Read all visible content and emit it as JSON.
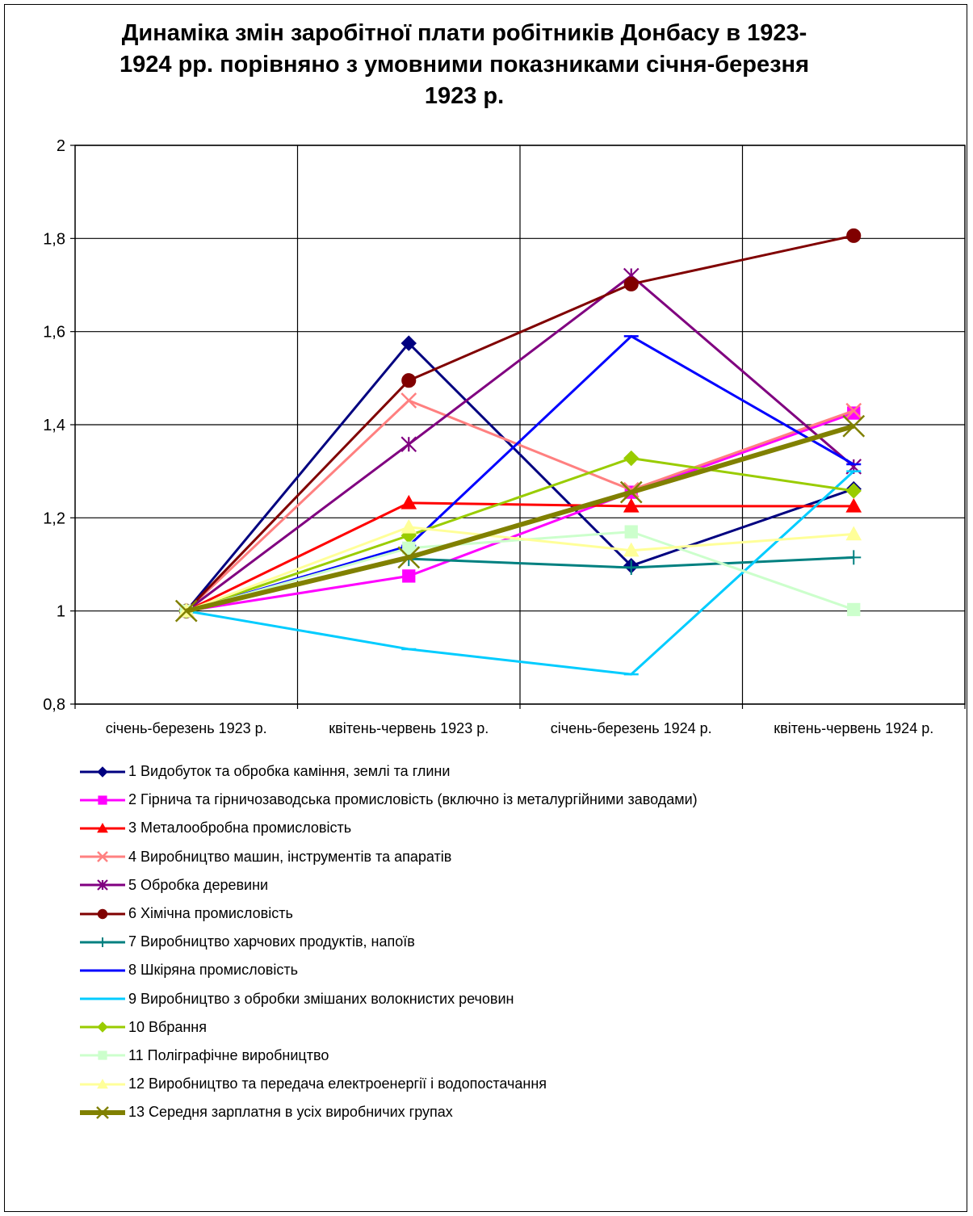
{
  "chart_data": {
    "type": "line",
    "title": "Динаміка змін заробітної плати робітників Донбасу в 1923-1924 рр. порівняно з умовними показниками січня-березня 1923 р.",
    "title_lines": [
      "Динаміка змін заробітної плати робітників Донбасу в 1923-",
      "1924 рр. порівняно з умовними показниками січня-березня",
      "1923 р."
    ],
    "categories": [
      "січень-березень 1923 р.",
      "квітень-червень 1923 р.",
      "січень-березень 1924 р.",
      "квітень-червень 1924 р."
    ],
    "ylim": [
      0.8,
      2
    ],
    "y_ticks": [
      0.8,
      1,
      1.2,
      1.4,
      1.6,
      1.8,
      2
    ],
    "y_tick_labels": [
      "0,8",
      "1",
      "1,2",
      "1,4",
      "1,6",
      "1,8",
      "2"
    ],
    "grid": true,
    "legend_position": "bottom",
    "series": [
      {
        "name": "1 Видобуток та обробка каміння, землі та глини",
        "values": [
          1,
          1.575,
          1.097,
          1.262
        ],
        "color": "#000080",
        "marker": "diamond",
        "width": 3
      },
      {
        "name": "2 Гірнича та гірничозаводська промисловість (включно із металургійними заводами)",
        "values": [
          1,
          1.075,
          1.255,
          1.425
        ],
        "color": "#ff00ff",
        "marker": "square",
        "width": 3
      },
      {
        "name": "3 Металообробна промисловість",
        "values": [
          1,
          1.232,
          1.225,
          1.225
        ],
        "color": "#ff0000",
        "marker": "triangle",
        "width": 3
      },
      {
        "name": "4 Виробництво машин, інструментів та апаратів",
        "values": [
          1,
          1.452,
          1.26,
          1.43
        ],
        "color": "#ff8080",
        "marker": "x",
        "width": 3
      },
      {
        "name": "5 Обробка деревини",
        "values": [
          1,
          1.358,
          1.72,
          1.31
        ],
        "color": "#800080",
        "marker": "star",
        "width": 3
      },
      {
        "name": "6 Хімічна промисловість",
        "values": [
          1,
          1.495,
          1.702,
          1.806
        ],
        "color": "#800000",
        "marker": "circle",
        "width": 3
      },
      {
        "name": "7 Виробництво харчових продуктів, напоїв",
        "values": [
          1,
          1.112,
          1.093,
          1.115
        ],
        "color": "#008080",
        "marker": "plus",
        "width": 3
      },
      {
        "name": "8 Шкіряна промисловість",
        "values": [
          1,
          1.14,
          1.59,
          1.315
        ],
        "color": "#0000ff",
        "marker": "dash",
        "width": 3
      },
      {
        "name": "9 Виробництво з обробки змішаних волокнистих речовин",
        "values": [
          1,
          0.918,
          0.864,
          1.3
        ],
        "color": "#00ccff",
        "marker": "dash",
        "width": 3
      },
      {
        "name": "10 Вбрання",
        "values": [
          1,
          1.162,
          1.328,
          1.258
        ],
        "color": "#99cc00",
        "marker": "diamond",
        "width": 3
      },
      {
        "name": "11 Поліграфічне виробництво",
        "values": [
          1,
          1.135,
          1.17,
          1.003
        ],
        "color": "#ccffcc",
        "marker": "square",
        "width": 3
      },
      {
        "name": "12 Виробництво та передача електроенергії і водопостачання",
        "values": [
          1,
          1.18,
          1.13,
          1.165
        ],
        "color": "#ffff99",
        "marker": "triangle",
        "width": 3
      },
      {
        "name": "13 Середня зарплатня в усіх виробничих групах",
        "values": [
          1,
          1.115,
          1.255,
          1.397
        ],
        "color": "#808000",
        "marker": "x",
        "width": 6
      }
    ]
  }
}
